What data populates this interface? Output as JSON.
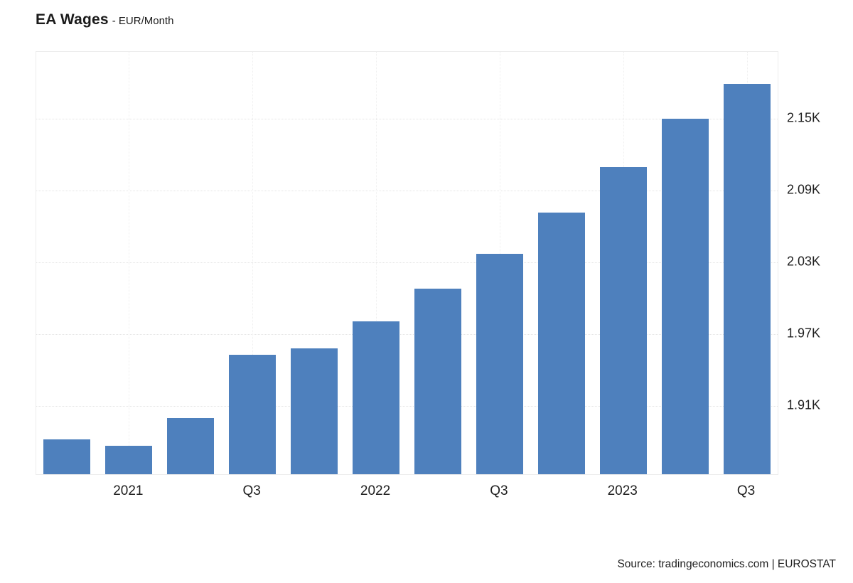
{
  "header": {
    "title": "EA Wages",
    "subtitle": "- EUR/Month"
  },
  "footer": {
    "source": "Source: tradingeconomics.com | EUROSTAT"
  },
  "colors": {
    "bar": "#4e80bd",
    "grid": "#e4e4e4",
    "text": "#1f1f1f"
  },
  "chart_data": {
    "type": "bar",
    "title": "EA Wages - EUR/Month",
    "xlabel": "",
    "ylabel": "EUR/Month",
    "categories": [
      "2020 Q4",
      "2021 Q1",
      "2021 Q2",
      "2021 Q3",
      "2021 Q4",
      "2022 Q1",
      "2022 Q2",
      "2022 Q3",
      "2022 Q4",
      "2023 Q1",
      "2023 Q2",
      "2023 Q3"
    ],
    "values": [
      1882,
      1877,
      1900,
      1953,
      1958,
      1981,
      2008,
      2037,
      2072,
      2110,
      2150,
      2179
    ],
    "ylim": [
      1853,
      2206
    ],
    "yticks": [
      {
        "value": 1910,
        "label": "1.91K"
      },
      {
        "value": 1970,
        "label": "1.97K"
      },
      {
        "value": 2030,
        "label": "2.03K"
      },
      {
        "value": 2090,
        "label": "2.09K"
      },
      {
        "value": 2150,
        "label": "2.15K"
      }
    ],
    "xticks": [
      {
        "index": 1,
        "label": "2021"
      },
      {
        "index": 3,
        "label": "Q3"
      },
      {
        "index": 5,
        "label": "2022"
      },
      {
        "index": 7,
        "label": "Q3"
      },
      {
        "index": 9,
        "label": "2023"
      },
      {
        "index": 11,
        "label": "Q3"
      }
    ],
    "bar_color": "#4e80bd",
    "grid": true,
    "legend": false,
    "ytick_side": "right"
  }
}
